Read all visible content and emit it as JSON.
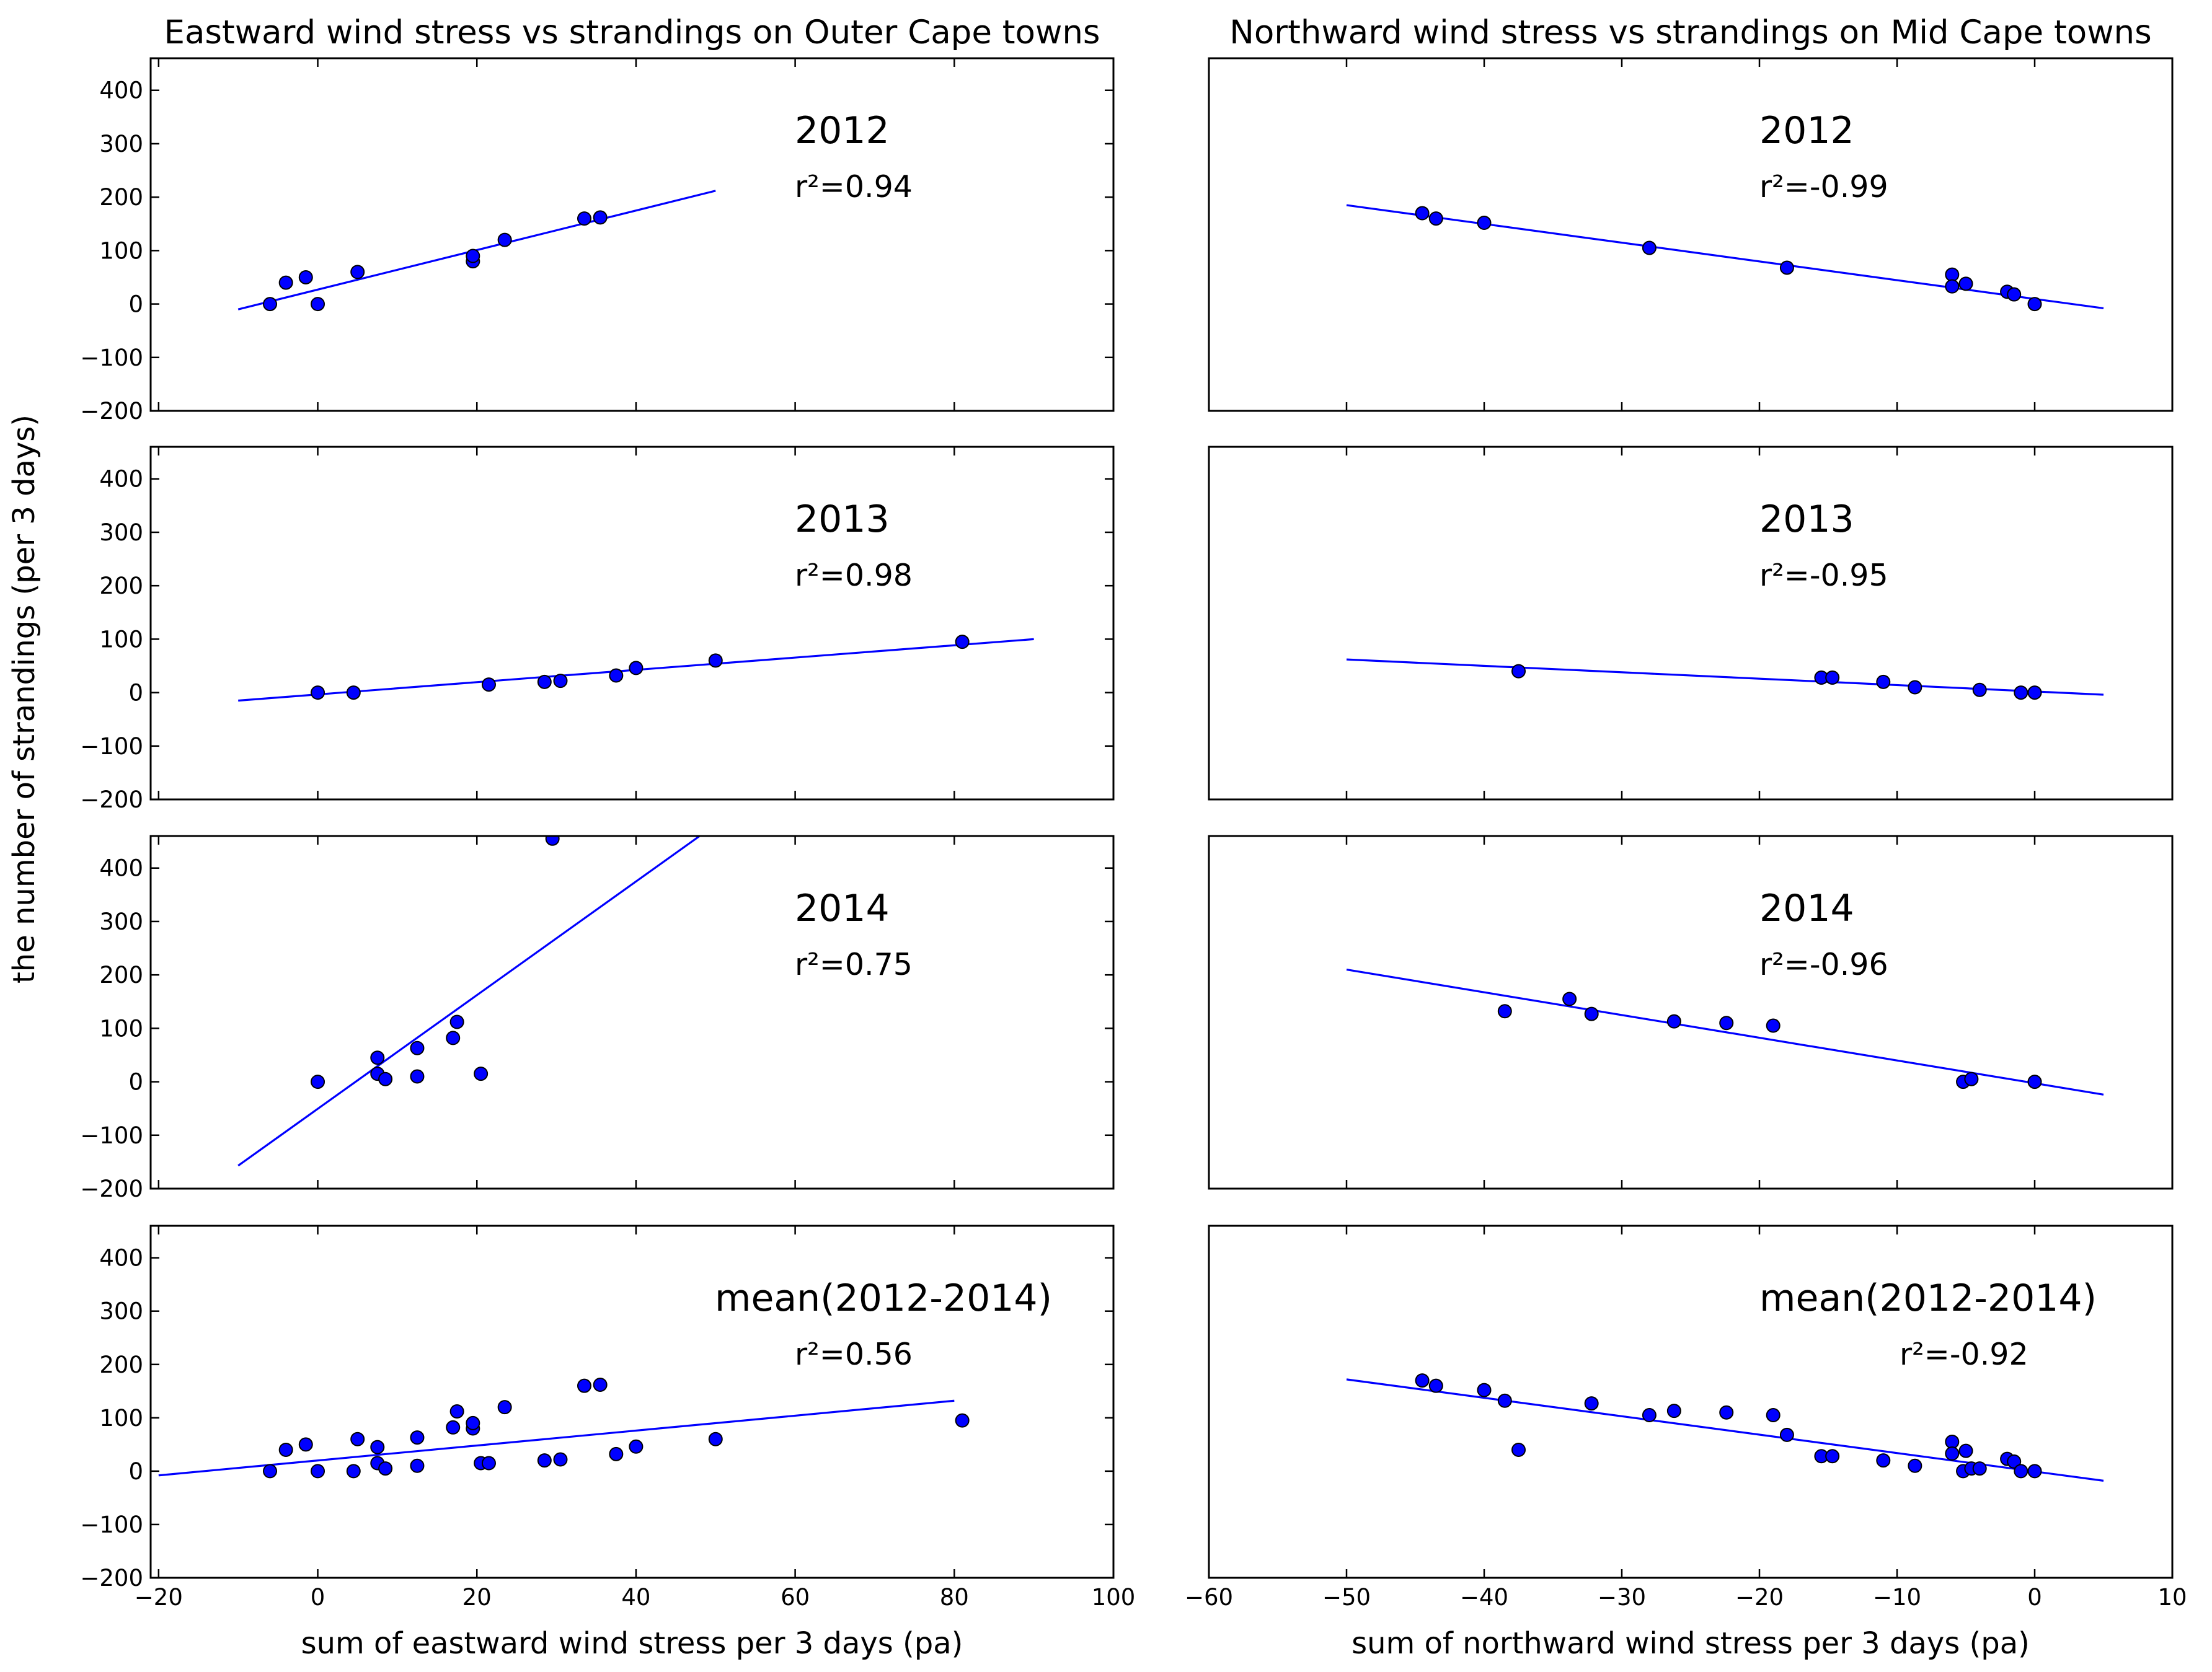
{
  "chart_data": {
    "type": "scatter",
    "grid": false,
    "ylabel": "the number of strandings (per 3 days)",
    "columns": [
      {
        "title": "Eastward wind stress vs strandings on Outer Cape towns",
        "xlabel": "sum of eastward wind stress per 3 days (pa)",
        "xlim": [
          -21,
          100
        ],
        "xticks": [
          -20,
          0,
          20,
          40,
          60,
          80,
          100
        ]
      },
      {
        "title": "Northward wind stress vs strandings on Mid Cape towns",
        "xlabel": "sum of northward wind stress per 3 days (pa)",
        "xlim": [
          -60,
          10
        ],
        "xticks": [
          -60,
          -50,
          -40,
          -30,
          -20,
          -10,
          0,
          10
        ]
      }
    ],
    "ylim": [
      -200,
      460
    ],
    "yticks": [
      -200,
      -100,
      0,
      100,
      200,
      300,
      400
    ],
    "panels": [
      {
        "col": 0,
        "row": 0,
        "label": "2012",
        "r2": "r²=0.94",
        "points": [
          [
            -6,
            0
          ],
          [
            -4,
            40
          ],
          [
            -1.5,
            50
          ],
          [
            0,
            0
          ],
          [
            5,
            60
          ],
          [
            19.5,
            80
          ],
          [
            19.5,
            90
          ],
          [
            23.5,
            120
          ],
          [
            33.5,
            160
          ],
          [
            35.5,
            162
          ]
        ],
        "fit": [
          [
            -10,
            -10
          ],
          [
            50,
            212
          ]
        ]
      },
      {
        "col": 1,
        "row": 0,
        "label": "2012",
        "r2": "r²=-0.99",
        "points": [
          [
            -44.5,
            170
          ],
          [
            -43.5,
            160
          ],
          [
            -40,
            152
          ],
          [
            -28,
            105
          ],
          [
            -18,
            68
          ],
          [
            -6,
            55
          ],
          [
            -6,
            33
          ],
          [
            -5,
            38
          ],
          [
            -2,
            23
          ],
          [
            -1.5,
            18
          ],
          [
            0,
            0
          ]
        ],
        "fit": [
          [
            -50,
            185
          ],
          [
            5,
            -8
          ]
        ]
      },
      {
        "col": 0,
        "row": 1,
        "label": "2013",
        "r2": "r²=0.98",
        "points": [
          [
            0,
            0
          ],
          [
            4.5,
            0
          ],
          [
            21.5,
            15
          ],
          [
            28.5,
            20
          ],
          [
            30.5,
            22
          ],
          [
            37.5,
            32
          ],
          [
            40,
            46
          ],
          [
            50,
            60
          ],
          [
            81,
            95
          ]
        ],
        "fit": [
          [
            -10,
            -15
          ],
          [
            90,
            100
          ]
        ]
      },
      {
        "col": 1,
        "row": 1,
        "label": "2013",
        "r2": "r²=-0.95",
        "points": [
          [
            -37.5,
            40
          ],
          [
            -15.5,
            28
          ],
          [
            -14.7,
            28
          ],
          [
            -11,
            20
          ],
          [
            -8.7,
            10
          ],
          [
            -4,
            5
          ],
          [
            -1,
            0
          ],
          [
            0,
            0
          ]
        ],
        "fit": [
          [
            -50,
            62
          ],
          [
            5,
            -4
          ]
        ]
      },
      {
        "col": 0,
        "row": 2,
        "label": "2014",
        "r2": "r²=0.75",
        "points": [
          [
            0,
            0
          ],
          [
            7.5,
            15
          ],
          [
            7.5,
            45
          ],
          [
            8.5,
            5
          ],
          [
            12.5,
            10
          ],
          [
            12.5,
            63
          ],
          [
            17,
            82
          ],
          [
            17.5,
            112
          ],
          [
            20.5,
            15
          ],
          [
            29.5,
            455
          ]
        ],
        "fit": [
          [
            -10,
            -157
          ],
          [
            48,
            460
          ]
        ]
      },
      {
        "col": 1,
        "row": 2,
        "label": "2014",
        "r2": "r²=-0.96",
        "points": [
          [
            -38.5,
            132
          ],
          [
            -33.8,
            155
          ],
          [
            -32.2,
            127
          ],
          [
            -26.2,
            113
          ],
          [
            -22.4,
            110
          ],
          [
            -19,
            105
          ],
          [
            -5.2,
            0
          ],
          [
            -4.6,
            5
          ],
          [
            0,
            0
          ]
        ],
        "fit": [
          [
            -50,
            210
          ],
          [
            5,
            -24
          ]
        ]
      },
      {
        "col": 0,
        "row": 3,
        "label": "mean(2012-2014)",
        "r2": "r²=0.56",
        "points": [
          [
            -6,
            0
          ],
          [
            -4,
            40
          ],
          [
            -1.5,
            50
          ],
          [
            0,
            0
          ],
          [
            4.5,
            0
          ],
          [
            5,
            60
          ],
          [
            7.5,
            15
          ],
          [
            7.5,
            45
          ],
          [
            8.5,
            5
          ],
          [
            12.5,
            10
          ],
          [
            12.5,
            63
          ],
          [
            17,
            82
          ],
          [
            17.5,
            112
          ],
          [
            19.5,
            80
          ],
          [
            19.5,
            90
          ],
          [
            20.5,
            15
          ],
          [
            21.5,
            15
          ],
          [
            23.5,
            120
          ],
          [
            28.5,
            20
          ],
          [
            30.5,
            22
          ],
          [
            33.5,
            160
          ],
          [
            35.5,
            162
          ],
          [
            37.5,
            32
          ],
          [
            40,
            46
          ],
          [
            50,
            60
          ],
          [
            81,
            95
          ]
        ],
        "fit": [
          [
            -20,
            -8
          ],
          [
            80,
            132
          ]
        ]
      },
      {
        "col": 1,
        "row": 3,
        "label": "mean(2012-2014)",
        "r2": "r²=-0.92",
        "points": [
          [
            -44.5,
            170
          ],
          [
            -43.5,
            160
          ],
          [
            -40,
            152
          ],
          [
            -38.5,
            132
          ],
          [
            -37.5,
            40
          ],
          [
            -32.2,
            127
          ],
          [
            -28,
            105
          ],
          [
            -26.2,
            113
          ],
          [
            -22.4,
            110
          ],
          [
            -19,
            105
          ],
          [
            -18,
            68
          ],
          [
            -15.5,
            28
          ],
          [
            -14.7,
            28
          ],
          [
            -11,
            20
          ],
          [
            -8.7,
            10
          ],
          [
            -6,
            55
          ],
          [
            -6,
            33
          ],
          [
            -5.2,
            0
          ],
          [
            -5,
            38
          ],
          [
            -4.6,
            5
          ],
          [
            -4,
            5
          ],
          [
            -2,
            23
          ],
          [
            -1.5,
            18
          ],
          [
            -1,
            0
          ],
          [
            0,
            0
          ]
        ],
        "fit": [
          [
            -50,
            172
          ],
          [
            5,
            -18
          ]
        ]
      }
    ]
  }
}
